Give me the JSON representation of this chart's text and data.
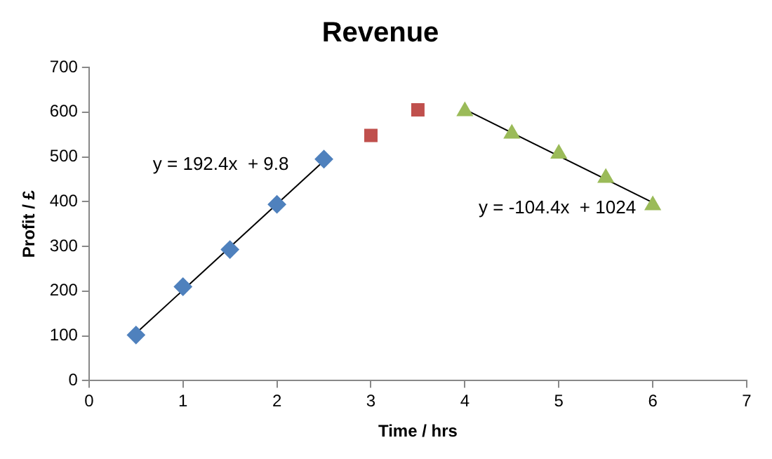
{
  "chart_data": {
    "type": "scatter",
    "title": "Revenue",
    "xlabel": "Time / hrs",
    "ylabel": "Profit / £",
    "xlim": [
      0,
      7
    ],
    "xticks": [
      0,
      1,
      2,
      3,
      4,
      5,
      6,
      7
    ],
    "ylim": [
      0,
      700
    ],
    "yticks": [
      0,
      100,
      200,
      300,
      400,
      500,
      600,
      700
    ],
    "grid": false,
    "legend": false,
    "series": [
      {
        "type": "scatter",
        "marker": "diamond",
        "color": "#4f81bd",
        "x": [
          0.5,
          1,
          1.5,
          2,
          2.5
        ],
        "values": [
          102,
          210,
          293,
          394,
          495
        ]
      },
      {
        "type": "scatter",
        "marker": "square",
        "color": "#c0504d",
        "x": [
          3,
          3.5
        ],
        "values": [
          548,
          605
        ]
      },
      {
        "type": "scatter",
        "marker": "triangle",
        "color": "#9bbb59",
        "x": [
          4,
          4.5,
          5,
          5.5,
          6
        ],
        "values": [
          602,
          552,
          507,
          453,
          392
        ]
      },
      {
        "type": "line",
        "marker": "none",
        "color": "#000000",
        "x": [
          0.5,
          2.5
        ],
        "values": [
          106,
          491
        ]
      },
      {
        "type": "line",
        "marker": "none",
        "color": "#000000",
        "x": [
          4,
          6
        ],
        "values": [
          606,
          398
        ]
      }
    ],
    "annotations": [
      "y = 192.4x  + 9.8",
      "y = -104.4x  + 1024"
    ]
  }
}
